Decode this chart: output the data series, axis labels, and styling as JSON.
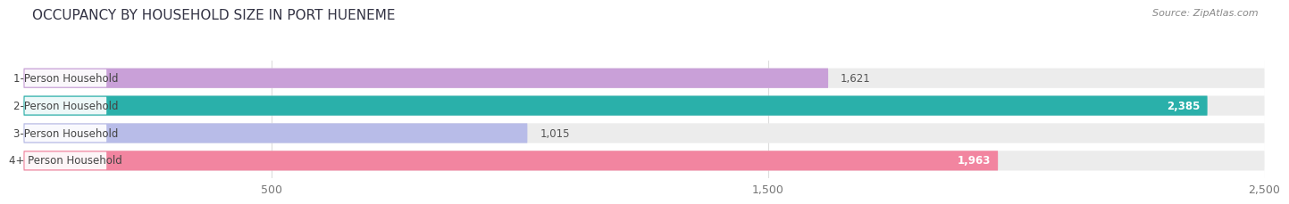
{
  "title": "OCCUPANCY BY HOUSEHOLD SIZE IN PORT HUENEME",
  "source": "Source: ZipAtlas.com",
  "categories": [
    "1-Person Household",
    "2-Person Household",
    "3-Person Household",
    "4+ Person Household"
  ],
  "values": [
    1621,
    2385,
    1015,
    1963
  ],
  "bar_colors": [
    "#c9a0d8",
    "#2ab0aa",
    "#b8bce8",
    "#f285a0"
  ],
  "label_colors": [
    "#555555",
    "#ffffff",
    "#555555",
    "#ffffff"
  ],
  "xlim": [
    0,
    2500
  ],
  "xticks": [
    500,
    1500,
    2500
  ],
  "background_color": "#ffffff",
  "bar_bg_color": "#ececec",
  "row_bg_color": "#f5f5f5",
  "title_fontsize": 11,
  "source_fontsize": 8,
  "label_fontsize": 8.5,
  "value_fontsize": 8.5,
  "tick_fontsize": 9
}
